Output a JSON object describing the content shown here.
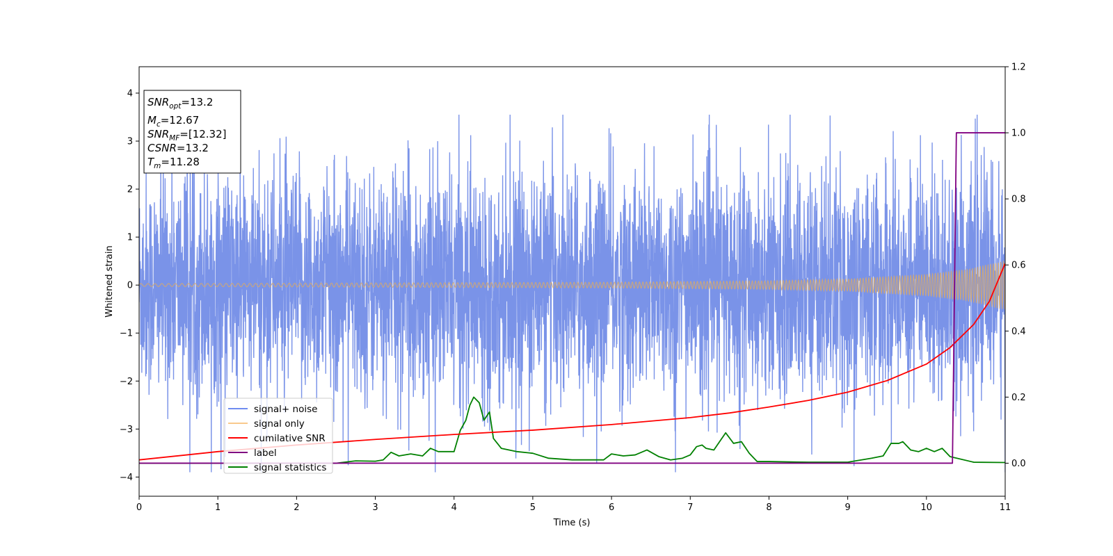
{
  "chart_data": {
    "type": "line",
    "xlabel": "Time (s)",
    "ylabel": "Whitened strain",
    "xlim": [
      0,
      11
    ],
    "ylim_left": [
      -4.4,
      4.55
    ],
    "ylim_right": [
      -0.1,
      1.2
    ],
    "x_ticks": [
      "0",
      "1",
      "2",
      "3",
      "4",
      "5",
      "6",
      "7",
      "8",
      "9",
      "10",
      "11"
    ],
    "y_left_ticks": [
      "−4",
      "−3",
      "−2",
      "−1",
      "0",
      "1",
      "2",
      "3",
      "4"
    ],
    "y_right_ticks": [
      "0.0",
      "0.2",
      "0.4",
      "0.6",
      "0.8",
      "1.0",
      "1.2"
    ],
    "grid": false,
    "legend_position": "lower-left",
    "info_box": {
      "snr_opt": {
        "base": "SNR",
        "sub": "opt",
        "value": "=13.2"
      },
      "mc": {
        "base": "M",
        "sub": "c",
        "value": "=12.67"
      },
      "snr_mf": {
        "base": "SNR",
        "sub": "MF",
        "value": "=[12.32]"
      },
      "csnr": {
        "base": "CSNR",
        "sub": "",
        "value": "=13.2"
      },
      "tm": {
        "base": "T",
        "sub": "m",
        "value": "=11.28"
      }
    },
    "series": [
      {
        "name": "signal+ noise",
        "axis": "left",
        "color": "#7a93e8",
        "description": "noise envelope approx ±2.3 with peaks to ±3.5",
        "amplitude_typical": 1.3,
        "amplitude_peaks": 3.4
      },
      {
        "name": "signal only",
        "axis": "left",
        "color": "#f3c98b",
        "envelope": {
          "x": [
            0,
            2,
            4,
            6,
            8,
            9,
            10,
            10.5,
            11
          ],
          "amp": [
            0.03,
            0.04,
            0.05,
            0.06,
            0.09,
            0.13,
            0.23,
            0.33,
            0.52
          ]
        }
      },
      {
        "name": "cumilative SNR",
        "axis": "right",
        "color": "#ff0000",
        "x": [
          0,
          1,
          2,
          3,
          4,
          5,
          6,
          7,
          7.5,
          8,
          8.5,
          9,
          9.5,
          10,
          10.3,
          10.6,
          10.8,
          11
        ],
        "y": [
          0.01,
          0.035,
          0.055,
          0.072,
          0.087,
          0.1,
          0.117,
          0.138,
          0.152,
          0.17,
          0.19,
          0.215,
          0.25,
          0.3,
          0.35,
          0.42,
          0.49,
          0.605
        ]
      },
      {
        "name": "label",
        "axis": "right",
        "color": "#800080",
        "x": [
          0,
          10.33,
          10.38,
          11
        ],
        "y": [
          0,
          0,
          1,
          1
        ]
      },
      {
        "name": "signal statistics",
        "axis": "right",
        "color": "#008000",
        "x": [
          0,
          2.5,
          2.75,
          3.0,
          3.1,
          3.2,
          3.3,
          3.45,
          3.6,
          3.7,
          3.8,
          3.9,
          4.0,
          4.08,
          4.15,
          4.2,
          4.25,
          4.32,
          4.38,
          4.45,
          4.5,
          4.6,
          4.7,
          4.8,
          5.0,
          5.2,
          5.5,
          5.9,
          6.0,
          6.15,
          6.3,
          6.45,
          6.6,
          6.75,
          6.9,
          7.0,
          7.08,
          7.15,
          7.2,
          7.3,
          7.45,
          7.55,
          7.65,
          7.75,
          7.85,
          8.0,
          8.5,
          9.0,
          9.3,
          9.45,
          9.55,
          9.65,
          9.7,
          9.8,
          9.9,
          10.0,
          10.1,
          10.2,
          10.3,
          10.6,
          11
        ],
        "y": [
          0,
          0,
          0.007,
          0.006,
          0.01,
          0.033,
          0.022,
          0.028,
          0.022,
          0.045,
          0.035,
          0.035,
          0.035,
          0.1,
          0.13,
          0.175,
          0.2,
          0.183,
          0.13,
          0.155,
          0.075,
          0.045,
          0.04,
          0.035,
          0.03,
          0.015,
          0.01,
          0.01,
          0.028,
          0.022,
          0.025,
          0.04,
          0.02,
          0.01,
          0.015,
          0.025,
          0.05,
          0.055,
          0.045,
          0.04,
          0.092,
          0.06,
          0.065,
          0.03,
          0.005,
          0.005,
          0.003,
          0.003,
          0.015,
          0.022,
          0.06,
          0.06,
          0.065,
          0.04,
          0.035,
          0.045,
          0.035,
          0.045,
          0.02,
          0.003,
          0.002
        ]
      }
    ]
  }
}
